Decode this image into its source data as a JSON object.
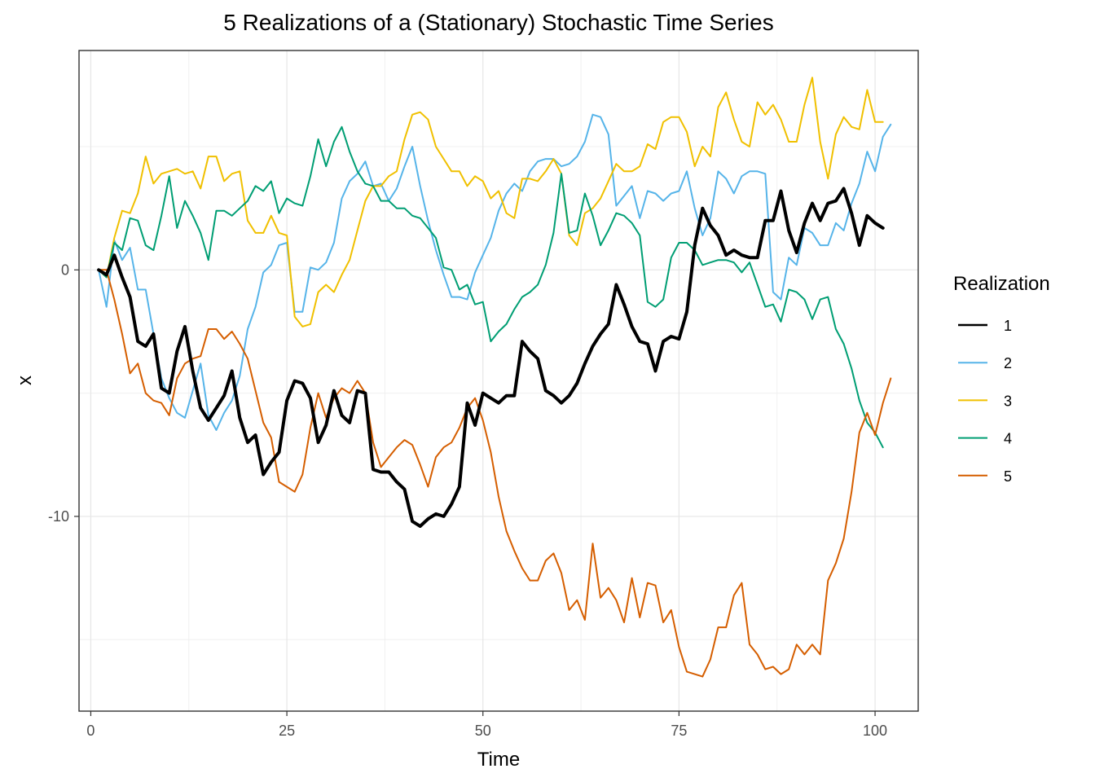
{
  "chart_data": {
    "type": "line",
    "title": "5 Realizations of a (Stationary) Stochastic Time Series",
    "xlabel": "Time",
    "ylabel": "x",
    "xlim": [
      -1.5,
      105.5
    ],
    "ylim": [
      -17.9,
      8.9
    ],
    "x_ticks": [
      0,
      25,
      50,
      75,
      100
    ],
    "y_ticks": [
      0,
      -10
    ],
    "grid": true,
    "legend": {
      "title": "Realization",
      "position": "right"
    },
    "series": [
      {
        "name": "1",
        "color": "#000000",
        "width": 4,
        "values": [
          0,
          -0.2,
          0.6,
          -0.3,
          -1.1,
          -2.9,
          -3.1,
          -2.6,
          -4.8,
          -5,
          -3.3,
          -2.3,
          -4.1,
          -5.6,
          -6.1,
          -5.6,
          -5.1,
          -4.1,
          -6,
          -7,
          -6.7,
          -8.3,
          -7.8,
          -7.4,
          -5.3,
          -4.5,
          -4.6,
          -5.2,
          -7,
          -6.3,
          -4.9,
          -5.9,
          -6.2,
          -4.9,
          -5,
          -8.1,
          -8.2,
          -8.2,
          -8.6,
          -8.9,
          -10.2,
          -10.4,
          -10.1,
          -9.9,
          -10,
          -9.5,
          -8.8,
          -5.4,
          -6.3,
          -5,
          -5.2,
          -5.4,
          -5.1,
          -5.1,
          -2.9,
          -3.3,
          -3.6,
          -4.9,
          -5.1,
          -5.4,
          -5.1,
          -4.6,
          -3.8,
          -3.1,
          -2.6,
          -2.2,
          -0.6,
          -1.4,
          -2.3,
          -2.9,
          -3,
          -4.1,
          -2.9,
          -2.7,
          -2.8,
          -1.7,
          1,
          2.5,
          1.8,
          1.4,
          0.6,
          0.8,
          0.6,
          0.5,
          0.5,
          2,
          2,
          3.2,
          1.6,
          0.7,
          1.9,
          2.7,
          2,
          2.7,
          2.8,
          3.3,
          2.3,
          1,
          2.2,
          1.9,
          1.7
        ]
      },
      {
        "name": "2",
        "color": "#56B4E9",
        "width": 2,
        "values": [
          0,
          -1.5,
          1.2,
          0.4,
          0.9,
          -0.8,
          -0.8,
          -2.6,
          -4.4,
          -5.2,
          -5.8,
          -6,
          -4.9,
          -3.8,
          -5.9,
          -6.5,
          -5.8,
          -5.3,
          -4.3,
          -2.4,
          -1.5,
          -0.1,
          0.2,
          1,
          1.1,
          -1.7,
          -1.7,
          0.1,
          0,
          0.3,
          1.1,
          2.9,
          3.6,
          3.9,
          4.4,
          3.4,
          3.5,
          2.8,
          3.3,
          4.2,
          5,
          3.4,
          2,
          0.8,
          -0.2,
          -1.1,
          -1.1,
          -1.2,
          -0.1,
          0.6,
          1.3,
          2.4,
          3.1,
          3.5,
          3.2,
          4,
          4.4,
          4.5,
          4.5,
          4.2,
          4.3,
          4.6,
          5.2,
          6.3,
          6.2,
          5.5,
          2.6,
          3,
          3.4,
          2.1,
          3.2,
          3.1,
          2.8,
          3.1,
          3.2,
          4,
          2.5,
          1.4,
          2.1,
          4,
          3.7,
          3.1,
          3.8,
          4,
          4,
          3.9,
          -0.9,
          -1.2,
          0.5,
          0.2,
          1.7,
          1.5,
          1,
          1,
          1.9,
          1.6,
          2.7,
          3.5,
          4.8,
          4,
          5.4,
          5.9
        ]
      },
      {
        "name": "3",
        "color": "#E69F00",
        "color_display": "#F0C000",
        "width": 2,
        "values": [
          0,
          -0.3,
          1.3,
          2.4,
          2.3,
          3.1,
          4.6,
          3.5,
          3.9,
          4,
          4.1,
          3.9,
          4,
          3.3,
          4.6,
          4.6,
          3.6,
          3.9,
          4,
          2,
          1.5,
          1.5,
          2.2,
          1.5,
          1.4,
          -1.9,
          -2.3,
          -2.2,
          -0.9,
          -0.6,
          -0.9,
          -0.2,
          0.4,
          1.6,
          2.8,
          3.4,
          3.4,
          3.8,
          4,
          5.3,
          6.3,
          6.4,
          6.1,
          5,
          4.5,
          4,
          4,
          3.4,
          3.8,
          3.6,
          2.9,
          3.2,
          2.3,
          2.1,
          3.7,
          3.7,
          3.6,
          4,
          4.5,
          3.9,
          1.4,
          1,
          2.3,
          2.5,
          2.9,
          3.6,
          4.3,
          4,
          4,
          4.2,
          5.1,
          4.9,
          6,
          6.2,
          6.2,
          5.6,
          4.2,
          5,
          4.6,
          6.6,
          7.2,
          6.1,
          5.2,
          5,
          6.8,
          6.3,
          6.7,
          6.1,
          5.2,
          5.2,
          6.7,
          7.8,
          5.2,
          3.7,
          5.5,
          6.2,
          5.8,
          5.7,
          7.3,
          6,
          6
        ]
      },
      {
        "name": "4",
        "color": "#009E73",
        "width": 2,
        "values": [
          0,
          -0.3,
          1.1,
          0.8,
          2.1,
          2,
          1,
          0.8,
          2.2,
          3.8,
          1.7,
          2.8,
          2.2,
          1.5,
          0.4,
          2.4,
          2.4,
          2.2,
          2.5,
          2.8,
          3.4,
          3.2,
          3.6,
          2.3,
          2.9,
          2.7,
          2.6,
          3.8,
          5.3,
          4.2,
          5.2,
          5.8,
          4.8,
          4,
          3.5,
          3.4,
          2.8,
          2.8,
          2.5,
          2.5,
          2.2,
          2.1,
          1.7,
          1.3,
          0.1,
          0,
          -0.8,
          -0.6,
          -1.4,
          -1.3,
          -2.9,
          -2.5,
          -2.2,
          -1.6,
          -1.1,
          -0.9,
          -0.6,
          0.2,
          1.5,
          3.9,
          1.5,
          1.6,
          3.1,
          2.2,
          1,
          1.6,
          2.3,
          2.2,
          1.9,
          1.4,
          -1.3,
          -1.5,
          -1.2,
          0.5,
          1.1,
          1.1,
          0.8,
          0.2,
          0.3,
          0.4,
          0.4,
          0.3,
          -0.1,
          0.3,
          -0.6,
          -1.5,
          -1.4,
          -2.1,
          -0.8,
          -0.9,
          -1.2,
          -2,
          -1.2,
          -1.1,
          -2.4,
          -3,
          -4,
          -5.3,
          -6.2,
          -6.6,
          -7.2
        ]
      },
      {
        "name": "5",
        "color": "#D55E00",
        "width": 2,
        "values": [
          0,
          0,
          -1.2,
          -2.6,
          -4.2,
          -3.8,
          -5,
          -5.3,
          -5.4,
          -5.9,
          -4.4,
          -3.8,
          -3.6,
          -3.5,
          -2.4,
          -2.4,
          -2.8,
          -2.5,
          -3,
          -3.6,
          -4.9,
          -6.2,
          -6.8,
          -8.6,
          -8.8,
          -9,
          -8.3,
          -6.4,
          -5,
          -6,
          -5.2,
          -4.8,
          -5,
          -4.5,
          -5,
          -7,
          -8,
          -7.6,
          -7.2,
          -6.9,
          -7.1,
          -7.9,
          -8.8,
          -7.6,
          -7.2,
          -7,
          -6.4,
          -5.6,
          -5.2,
          -6.1,
          -7.4,
          -9.2,
          -10.6,
          -11.4,
          -12.1,
          -12.6,
          -12.6,
          -11.8,
          -11.5,
          -12.3,
          -13.8,
          -13.4,
          -14.2,
          -11.1,
          -13.3,
          -12.9,
          -13.4,
          -14.3,
          -12.5,
          -14.1,
          -12.7,
          -12.8,
          -14.3,
          -13.8,
          -15.3,
          -16.3,
          -16.4,
          -16.5,
          -15.8,
          -14.5,
          -14.5,
          -13.2,
          -12.7,
          -15.2,
          -15.6,
          -16.2,
          -16.1,
          -16.4,
          -16.2,
          -15.2,
          -15.6,
          -15.2,
          -15.6,
          -12.6,
          -11.9,
          -10.9,
          -9,
          -6.6,
          -5.8,
          -6.7,
          -5.4,
          -4.4
        ]
      }
    ]
  }
}
